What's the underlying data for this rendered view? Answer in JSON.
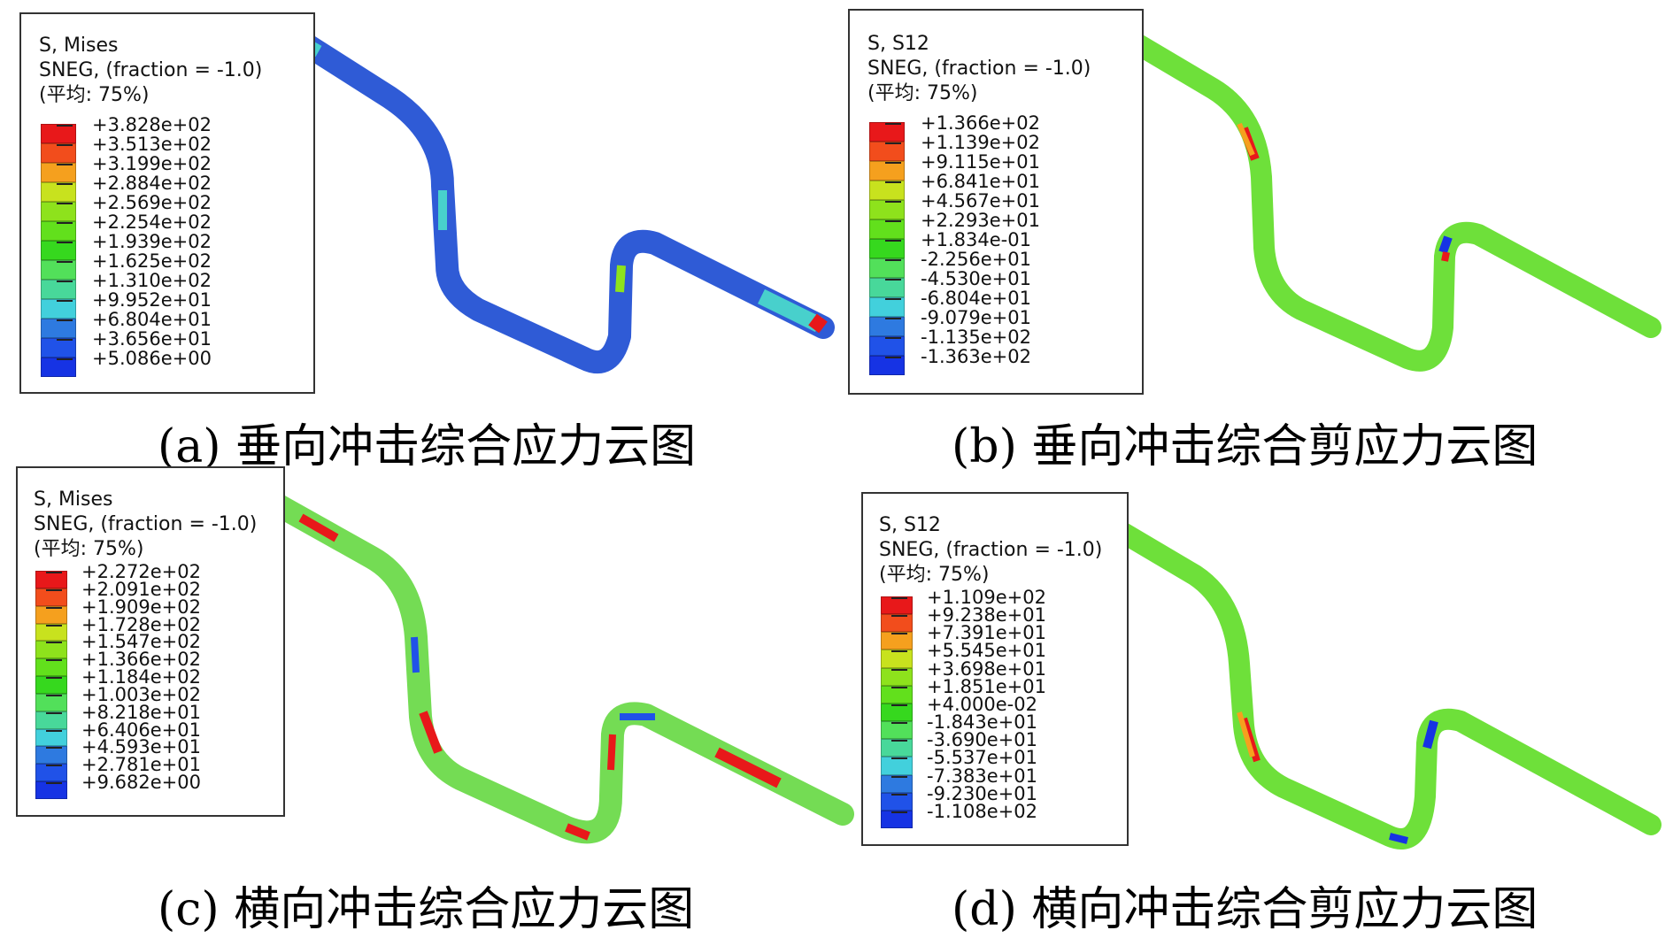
{
  "panels": [
    {
      "id": "a",
      "legend_title": "S, Mises",
      "legend_subtitle": "SNEG, (fraction = -1.0)",
      "legend_average": "(平均: 75%)",
      "legend_values": [
        "+3.828e+02",
        "+3.513e+02",
        "+3.199e+02",
        "+2.884e+02",
        "+2.569e+02",
        "+2.254e+02",
        "+1.939e+02",
        "+1.625e+02",
        "+1.310e+02",
        "+9.952e+01",
        "+6.804e+01",
        "+3.656e+01",
        "+5.086e+00"
      ],
      "caption": "(a) 垂向冲击综合应力云图",
      "pipe_base_color": "#2f5bd6"
    },
    {
      "id": "b",
      "legend_title": "S, S12",
      "legend_subtitle": "SNEG, (fraction = -1.0)",
      "legend_average": "(平均: 75%)",
      "legend_values": [
        "+1.366e+02",
        "+1.139e+02",
        "+9.115e+01",
        "+6.841e+01",
        "+4.567e+01",
        "+2.293e+01",
        "+1.834e-01",
        "-2.256e+01",
        "-4.530e+01",
        "-6.804e+01",
        "-9.079e+01",
        "-1.135e+02",
        "-1.363e+02"
      ],
      "caption": "(b) 垂向冲击综合剪应力云图",
      "pipe_base_color": "#6ee03a"
    },
    {
      "id": "c",
      "legend_title": "S, Mises",
      "legend_subtitle": "SNEG, (fraction = -1.0)",
      "legend_average": "(平均: 75%)",
      "legend_values": [
        "+2.272e+02",
        "+2.091e+02",
        "+1.909e+02",
        "+1.728e+02",
        "+1.547e+02",
        "+1.366e+02",
        "+1.184e+02",
        "+1.003e+02",
        "+8.218e+01",
        "+6.406e+01",
        "+4.593e+01",
        "+2.781e+01",
        "+9.682e+00"
      ],
      "caption": "(c) 横向冲击综合应力云图",
      "pipe_base_color": "#74dc54"
    },
    {
      "id": "d",
      "legend_title": "S, S12",
      "legend_subtitle": "SNEG, (fraction = -1.0)",
      "legend_average": "(平均: 75%)",
      "legend_values": [
        "+1.109e+02",
        "+9.238e+01",
        "+7.391e+01",
        "+5.545e+01",
        "+3.698e+01",
        "+1.851e+01",
        "+4.000e-02",
        "-1.843e+01",
        "-3.690e+01",
        "-5.537e+01",
        "-7.383e+01",
        "-9.230e+01",
        "-1.108e+02"
      ],
      "caption": "(d) 横向冲击综合剪应力云图",
      "pipe_base_color": "#6ee03a"
    }
  ],
  "colormap": [
    "#e8181a",
    "#f24d1c",
    "#f5a01e",
    "#c8e21e",
    "#8ee21c",
    "#62e01c",
    "#36d81e",
    "#52e05a",
    "#48d89a",
    "#42d0dc",
    "#2e7ae0",
    "#2052e8",
    "#1633e4"
  ]
}
